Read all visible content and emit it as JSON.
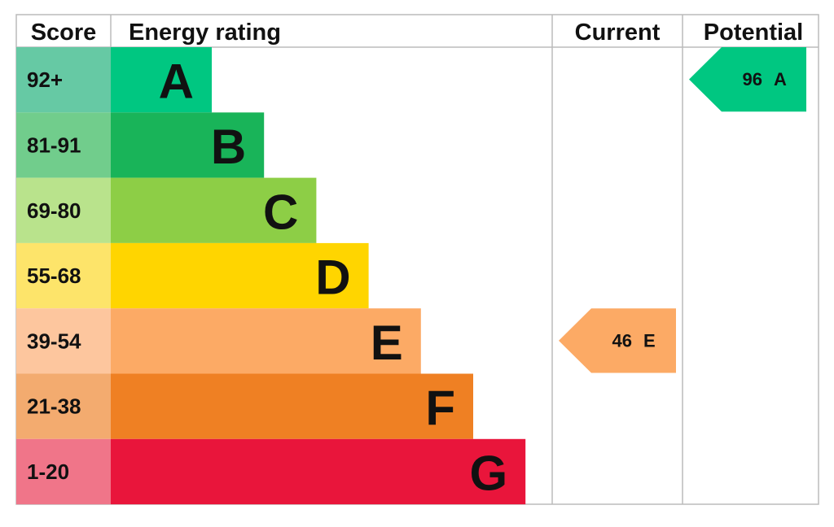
{
  "headers": {
    "score": "Score",
    "rating": "Energy rating",
    "current": "Current",
    "potential": "Potential"
  },
  "bands": [
    {
      "score": "92+",
      "letter": "A",
      "color": "#00c781",
      "score_color": "#66c9a4"
    },
    {
      "score": "81-91",
      "letter": "B",
      "color": "#19b459",
      "score_color": "#71cd8c"
    },
    {
      "score": "69-80",
      "letter": "C",
      "color": "#8dce46",
      "score_color": "#b9e38c"
    },
    {
      "score": "55-68",
      "letter": "D",
      "color": "#ffd500",
      "score_color": "#fde46a"
    },
    {
      "score": "39-54",
      "letter": "E",
      "color": "#fcaa65",
      "score_color": "#fdc69e"
    },
    {
      "score": "21-38",
      "letter": "F",
      "color": "#ef8023",
      "score_color": "#f3ab6f"
    },
    {
      "score": "1-20",
      "letter": "G",
      "color": "#e9153b",
      "score_color": "#f07589"
    }
  ],
  "current": {
    "value": 46,
    "letter": "E"
  },
  "potential": {
    "value": 96,
    "letter": "A"
  }
}
